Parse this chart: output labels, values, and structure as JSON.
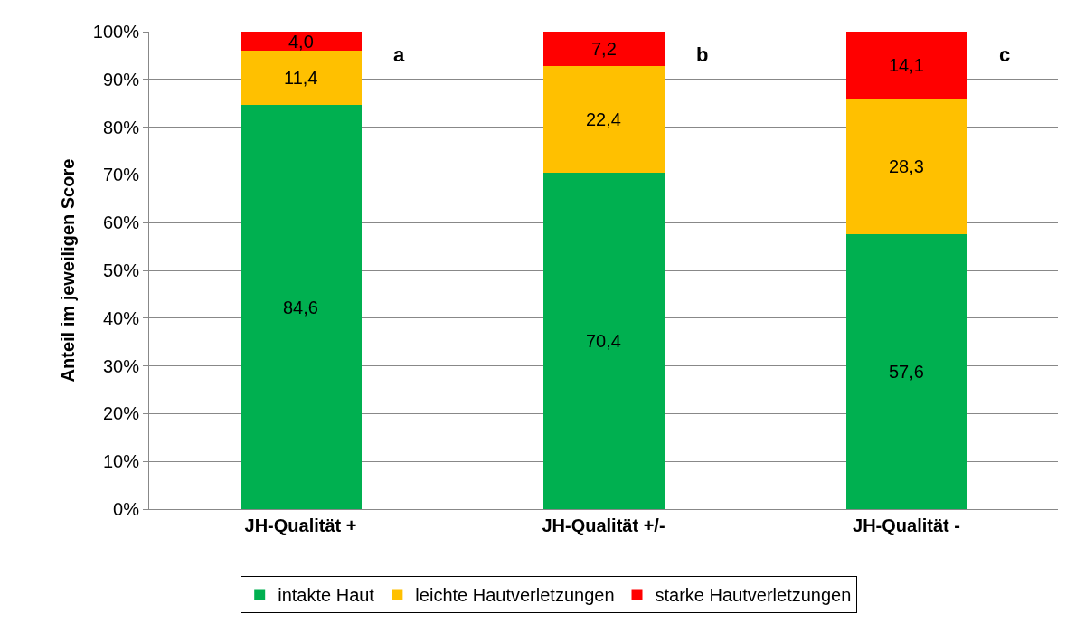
{
  "chart_data": {
    "type": "bar",
    "stacked": true,
    "ylabel": "Anteil im jeweiligen Score",
    "categories": [
      "JH-Qualität +",
      "JH-Qualität +/-",
      "JH-Qualität -"
    ],
    "series": [
      {
        "name": "intakte Haut",
        "color": "#00b050",
        "values": [
          84.6,
          70.4,
          57.6
        ],
        "value_labels": [
          "84,6",
          "70,4",
          "57,6"
        ]
      },
      {
        "name": "leichte Hautverletzungen",
        "color": "#ffc000",
        "values": [
          11.4,
          22.4,
          28.3
        ],
        "value_labels": [
          "11,4",
          "22,4",
          "28,3"
        ]
      },
      {
        "name": "starke Hautverletzungen",
        "color": "#ff0000",
        "values": [
          4.0,
          7.2,
          14.1
        ],
        "value_labels": [
          "4,0",
          "7,2",
          "14,1"
        ]
      }
    ],
    "ylim": [
      0,
      100
    ],
    "yticks": [
      {
        "value": 0,
        "label": "0%"
      },
      {
        "value": 10,
        "label": "10%"
      },
      {
        "value": 20,
        "label": "20%"
      },
      {
        "value": 30,
        "label": "30%"
      },
      {
        "value": 40,
        "label": "40%"
      },
      {
        "value": 50,
        "label": "50%"
      },
      {
        "value": 60,
        "label": "60%"
      },
      {
        "value": 70,
        "label": "70%"
      },
      {
        "value": 80,
        "label": "80%"
      },
      {
        "value": 90,
        "label": "90%"
      },
      {
        "value": 100,
        "label": "100%"
      }
    ],
    "grid": "y",
    "legend": "bottom",
    "annotations": [
      "a",
      "b",
      "c"
    ]
  }
}
